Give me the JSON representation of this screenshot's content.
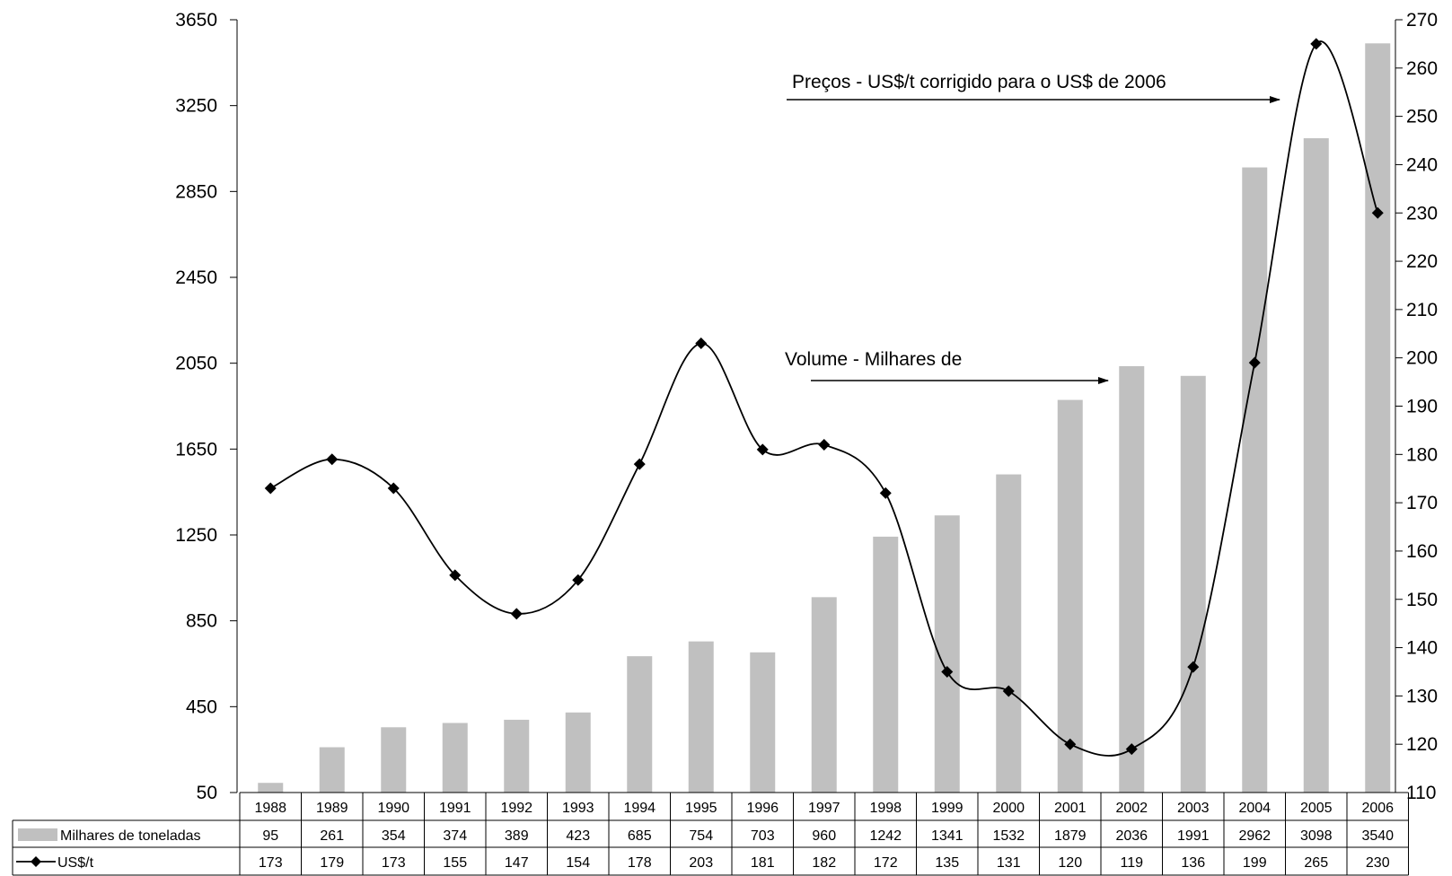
{
  "chart_data": {
    "type": "bar",
    "categories": [
      "1988",
      "1989",
      "1990",
      "1991",
      "1992",
      "1993",
      "1994",
      "1995",
      "1996",
      "1997",
      "1998",
      "1999",
      "2000",
      "2001",
      "2002",
      "2003",
      "2004",
      "2005",
      "2006"
    ],
    "series": [
      {
        "name": "Milhares de toneladas",
        "kind": "bar",
        "axis": "left",
        "color": "#c0c0c0",
        "values": [
          95,
          261,
          354,
          374,
          389,
          423,
          685,
          754,
          703,
          960,
          1242,
          1341,
          1532,
          1879,
          2036,
          1991,
          2962,
          3098,
          3540
        ]
      },
      {
        "name": "US$/t",
        "kind": "line",
        "axis": "right",
        "color": "#000000",
        "marker": "diamond",
        "smooth": true,
        "values": [
          173,
          179,
          173,
          155,
          147,
          154,
          178,
          203,
          181,
          182,
          172,
          135,
          131,
          120,
          119,
          136,
          199,
          265,
          230
        ]
      }
    ],
    "left_axis": {
      "min": 50,
      "max": 3650,
      "ticks": [
        50,
        450,
        850,
        1250,
        1650,
        2050,
        2450,
        2850,
        3250,
        3650
      ]
    },
    "right_axis": {
      "min": 110,
      "max": 270,
      "ticks": [
        110,
        120,
        130,
        140,
        150,
        160,
        170,
        180,
        190,
        200,
        210,
        220,
        230,
        240,
        250,
        260,
        270
      ]
    },
    "annotations": [
      {
        "text": "Preços - US$/t corrigido para o US$ de 2006",
        "points_to": "US$/t 2005"
      },
      {
        "text": "Volume - Milhares de",
        "points_to": "Milhares de toneladas 2002"
      }
    ],
    "data_table": true,
    "legend_placement": "data-table-left",
    "grid": false
  }
}
